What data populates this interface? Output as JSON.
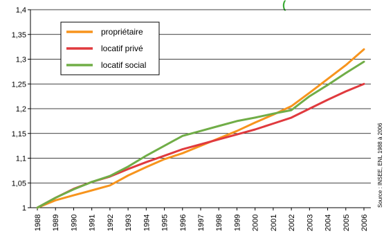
{
  "chart_data": {
    "type": "line",
    "title": "",
    "xlabel": "",
    "ylabel": "",
    "title_fragment": "(",
    "x": [
      "1988",
      "1989",
      "1990",
      "1991",
      "1992",
      "1993",
      "1994",
      "1995",
      "1996",
      "1997",
      "1998",
      "1999",
      "2000",
      "2001",
      "2002",
      "2003",
      "2004",
      "2005",
      "2006"
    ],
    "y_ticks": [
      "1",
      "1,05",
      "1,1",
      "1,15",
      "1,2",
      "1,25",
      "1,3",
      "1,35",
      "1,4"
    ],
    "ylim": [
      1,
      1.4
    ],
    "grid": "horizontal",
    "legend_position": "top-left",
    "series": [
      {
        "name": "propriétaire",
        "color": "#f7941d",
        "values": [
          1.0,
          1.015,
          1.025,
          1.035,
          1.045,
          1.065,
          1.082,
          1.098,
          1.11,
          1.125,
          1.14,
          1.155,
          1.172,
          1.188,
          1.205,
          1.232,
          1.26,
          1.288,
          1.32
        ]
      },
      {
        "name": "locatif privé",
        "color": "#e03a3e",
        "values": [
          1.0,
          1.02,
          1.038,
          1.052,
          1.063,
          1.078,
          1.092,
          1.105,
          1.118,
          1.128,
          1.138,
          1.148,
          1.158,
          1.17,
          1.182,
          1.2,
          1.218,
          1.235,
          1.25
        ]
      },
      {
        "name": "locatif social",
        "color": "#70ad47",
        "values": [
          1.0,
          1.02,
          1.037,
          1.052,
          1.064,
          1.083,
          1.105,
          1.125,
          1.145,
          1.155,
          1.165,
          1.175,
          1.182,
          1.19,
          1.197,
          1.225,
          1.248,
          1.272,
          1.295
        ]
      }
    ],
    "source_note": "Source : INSEE, ENL 1988 à 2006"
  }
}
